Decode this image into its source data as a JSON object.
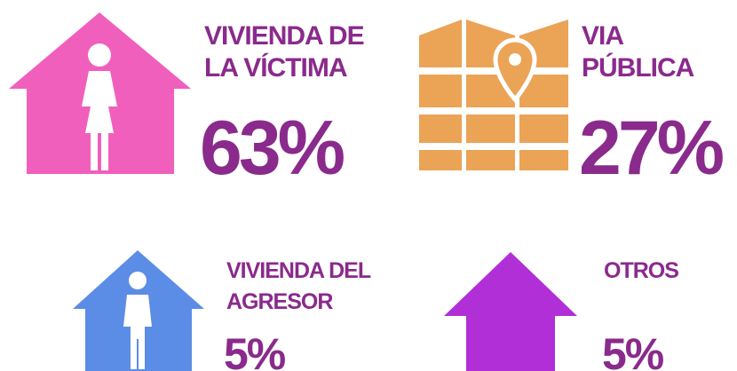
{
  "items": [
    {
      "label": [
        "VIVIENDA DE",
        "LA VÍCTIMA"
      ],
      "value": "63%"
    },
    {
      "label": [
        "VIA",
        "PÚBLICA"
      ],
      "value": "27%"
    },
    {
      "label": [
        "VIVIENDA DEL",
        "AGRESOR"
      ],
      "value": "5%"
    },
    {
      "label": [
        "OTROS"
      ],
      "value": "5%"
    }
  ]
}
